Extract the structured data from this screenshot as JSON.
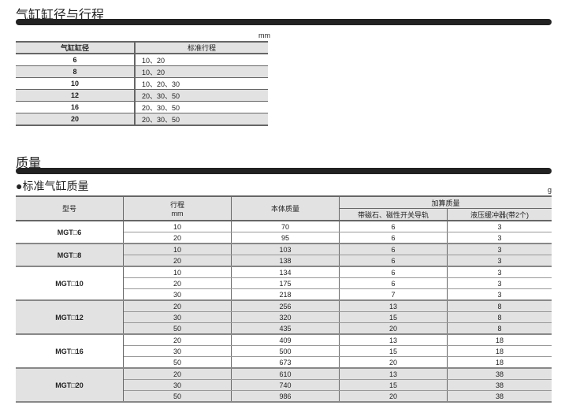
{
  "section1": {
    "title": "气缸缸径与行程",
    "unit": "mm",
    "headers": [
      "气缸缸径",
      "标准行程"
    ],
    "rows": [
      [
        "6",
        "10、20"
      ],
      [
        "8",
        "10、20"
      ],
      [
        "10",
        "10、20、30"
      ],
      [
        "12",
        "20、30、50"
      ],
      [
        "16",
        "20、30、50"
      ],
      [
        "20",
        "20、30、50"
      ]
    ]
  },
  "section2": {
    "title": "质量",
    "subtitle": "●标准气缸质量",
    "unit": "g",
    "headers": {
      "model": "型号",
      "stroke": "行程",
      "stroke_unit": "mm",
      "body_mass": "本体质量",
      "added_mass": "加算质量",
      "magnet": "带磁石、磁性开关导轨",
      "shock": "液压缓冲器(带2个)"
    },
    "groups": [
      {
        "model": "MGT□6",
        "rows": [
          [
            "10",
            "70",
            "6",
            "3"
          ],
          [
            "20",
            "95",
            "6",
            "3"
          ]
        ]
      },
      {
        "model": "MGT□8",
        "rows": [
          [
            "10",
            "103",
            "6",
            "3"
          ],
          [
            "20",
            "138",
            "6",
            "3"
          ]
        ]
      },
      {
        "model": "MGT□10",
        "rows": [
          [
            "10",
            "134",
            "6",
            "3"
          ],
          [
            "20",
            "175",
            "6",
            "3"
          ],
          [
            "30",
            "218",
            "7",
            "3"
          ]
        ]
      },
      {
        "model": "MGT□12",
        "rows": [
          [
            "20",
            "256",
            "13",
            "8"
          ],
          [
            "30",
            "320",
            "15",
            "8"
          ],
          [
            "50",
            "435",
            "20",
            "8"
          ]
        ]
      },
      {
        "model": "MGT□16",
        "rows": [
          [
            "20",
            "409",
            "13",
            "18"
          ],
          [
            "30",
            "500",
            "15",
            "18"
          ],
          [
            "50",
            "673",
            "20",
            "18"
          ]
        ]
      },
      {
        "model": "MGT□20",
        "rows": [
          [
            "20",
            "610",
            "13",
            "38"
          ],
          [
            "30",
            "740",
            "15",
            "38"
          ],
          [
            "50",
            "986",
            "20",
            "38"
          ]
        ]
      }
    ]
  }
}
